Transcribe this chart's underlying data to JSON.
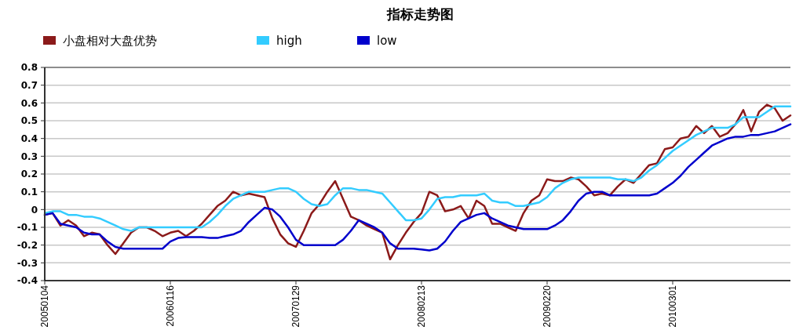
{
  "chart_data": {
    "type": "line",
    "title": "指标走势图",
    "legend": "top",
    "grid": "y",
    "marker": "none",
    "line_style": "solid",
    "categories": [
      "20050104",
      null,
      null,
      null,
      null,
      null,
      null,
      null,
      null,
      null,
      null,
      null,
      null,
      null,
      null,
      null,
      "20060116",
      null,
      null,
      null,
      null,
      null,
      null,
      null,
      null,
      null,
      null,
      null,
      null,
      null,
      null,
      null,
      "20070129",
      null,
      null,
      null,
      null,
      null,
      null,
      null,
      null,
      null,
      null,
      null,
      null,
      null,
      null,
      null,
      "20080213",
      null,
      null,
      null,
      null,
      null,
      null,
      null,
      null,
      null,
      null,
      null,
      null,
      null,
      null,
      null,
      "20090220",
      null,
      null,
      null,
      null,
      null,
      null,
      null,
      null,
      null,
      null,
      null,
      null,
      null,
      null,
      null,
      "20100301",
      null,
      null,
      null,
      null,
      null,
      null,
      null,
      null,
      null,
      null,
      null,
      null,
      null,
      null,
      null
    ],
    "ylim": [
      -0.4,
      0.8
    ],
    "yticks": [
      -0.4,
      -0.3,
      -0.2,
      -0.1,
      0,
      0.1,
      0.2,
      0.3,
      0.4,
      0.5,
      0.6,
      0.7,
      0.8
    ],
    "series": [
      {
        "name": "小盘相对大盘优势",
        "color": "#8b1a1a",
        "values": [
          -0.03,
          -0.02,
          -0.09,
          -0.06,
          -0.09,
          -0.15,
          -0.13,
          -0.14,
          -0.2,
          -0.25,
          -0.19,
          -0.13,
          -0.1,
          -0.1,
          -0.12,
          -0.15,
          -0.13,
          -0.12,
          -0.15,
          -0.12,
          -0.08,
          -0.03,
          0.02,
          0.05,
          0.1,
          0.08,
          0.09,
          0.08,
          0.07,
          -0.05,
          -0.14,
          -0.19,
          -0.21,
          -0.12,
          -0.02,
          0.03,
          0.1,
          0.16,
          0.06,
          -0.04,
          -0.06,
          -0.09,
          -0.11,
          -0.13,
          -0.28,
          -0.2,
          -0.13,
          -0.07,
          -0.02,
          0.1,
          0.08,
          -0.01,
          0,
          0.02,
          -0.05,
          0.05,
          0.02,
          -0.08,
          -0.08,
          -0.1,
          -0.12,
          -0.02,
          0.05,
          0.08,
          0.17,
          0.16,
          0.16,
          0.18,
          0.17,
          0.13,
          0.08,
          0.09,
          0.08,
          0.13,
          0.17,
          0.15,
          0.2,
          0.25,
          0.26,
          0.34,
          0.35,
          0.4,
          0.41,
          0.47,
          0.43,
          0.47,
          0.41,
          0.43,
          0.48,
          0.56,
          0.44,
          0.55,
          0.59,
          0.57,
          0.5,
          0.53
        ]
      },
      {
        "name": "high",
        "color": "#33ccff",
        "values": [
          -0.02,
          -0.01,
          -0.01,
          -0.03,
          -0.03,
          -0.04,
          -0.04,
          -0.05,
          -0.07,
          -0.09,
          -0.11,
          -0.12,
          -0.1,
          -0.1,
          -0.1,
          -0.1,
          -0.1,
          -0.1,
          -0.1,
          -0.1,
          -0.1,
          -0.07,
          -0.03,
          0.02,
          0.06,
          0.08,
          0.1,
          0.1,
          0.1,
          0.11,
          0.12,
          0.12,
          0.1,
          0.06,
          0.03,
          0.02,
          0.03,
          0.08,
          0.12,
          0.12,
          0.11,
          0.11,
          0.1,
          0.09,
          0.04,
          -0.01,
          -0.06,
          -0.06,
          -0.05,
          0,
          0.06,
          0.07,
          0.07,
          0.08,
          0.08,
          0.08,
          0.09,
          0.05,
          0.04,
          0.04,
          0.02,
          0.02,
          0.03,
          0.04,
          0.07,
          0.12,
          0.15,
          0.17,
          0.18,
          0.18,
          0.18,
          0.18,
          0.18,
          0.17,
          0.17,
          0.16,
          0.18,
          0.22,
          0.25,
          0.29,
          0.33,
          0.36,
          0.39,
          0.42,
          0.44,
          0.46,
          0.46,
          0.46,
          0.48,
          0.52,
          0.52,
          0.52,
          0.55,
          0.58,
          0.58,
          0.58
        ]
      },
      {
        "name": "low",
        "color": "#0000cc",
        "values": [
          -0.03,
          -0.02,
          -0.08,
          -0.09,
          -0.1,
          -0.13,
          -0.14,
          -0.14,
          -0.18,
          -0.21,
          -0.22,
          -0.22,
          -0.22,
          -0.22,
          -0.22,
          -0.22,
          -0.18,
          -0.16,
          -0.155,
          -0.155,
          -0.155,
          -0.16,
          -0.16,
          -0.15,
          -0.14,
          -0.12,
          -0.07,
          -0.03,
          0.01,
          0,
          -0.04,
          -0.1,
          -0.17,
          -0.2,
          -0.2,
          -0.2,
          -0.2,
          -0.2,
          -0.17,
          -0.12,
          -0.06,
          -0.08,
          -0.1,
          -0.13,
          -0.19,
          -0.22,
          -0.22,
          -0.22,
          -0.225,
          -0.23,
          -0.22,
          -0.18,
          -0.12,
          -0.07,
          -0.05,
          -0.03,
          -0.02,
          -0.05,
          -0.07,
          -0.09,
          -0.1,
          -0.11,
          -0.11,
          -0.11,
          -0.11,
          -0.09,
          -0.06,
          -0.01,
          0.05,
          0.09,
          0.1,
          0.1,
          0.08,
          0.08,
          0.08,
          0.08,
          0.08,
          0.08,
          0.09,
          0.12,
          0.15,
          0.19,
          0.24,
          0.28,
          0.32,
          0.36,
          0.38,
          0.4,
          0.41,
          0.41,
          0.42,
          0.42,
          0.43,
          0.44,
          0.46,
          0.48
        ]
      }
    ]
  }
}
